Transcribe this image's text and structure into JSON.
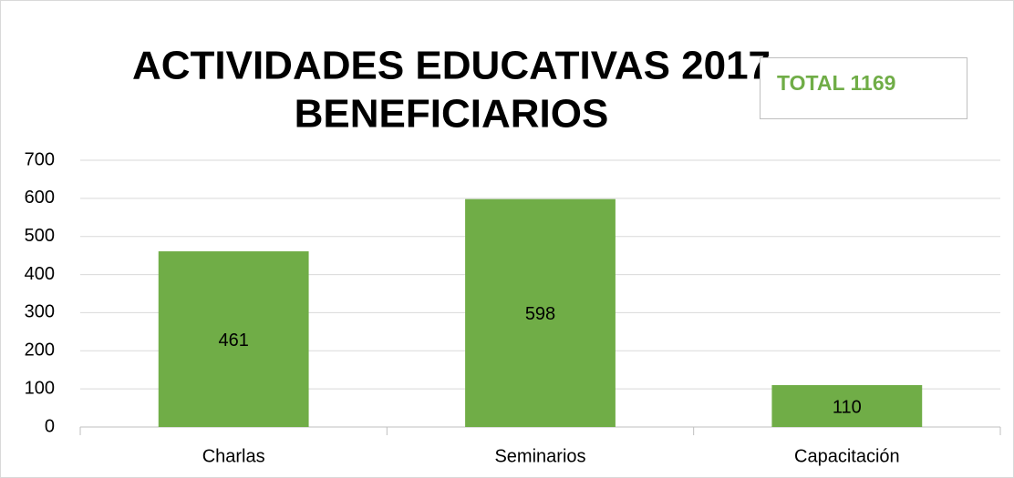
{
  "chart_data": {
    "type": "bar",
    "title": [
      "ACTIVIDADES EDUCATIVAS 2017",
      "BENEFICIARIOS"
    ],
    "annotations": [
      "TOTAL 1169"
    ],
    "categories": [
      "Charlas",
      "Seminarios",
      "Capacitación"
    ],
    "values": [
      461,
      598,
      110
    ],
    "color": "#70ad47",
    "ylim": [
      0,
      700
    ],
    "yticks": [
      0,
      100,
      200,
      300,
      400,
      500,
      600,
      700
    ],
    "grid": true
  }
}
